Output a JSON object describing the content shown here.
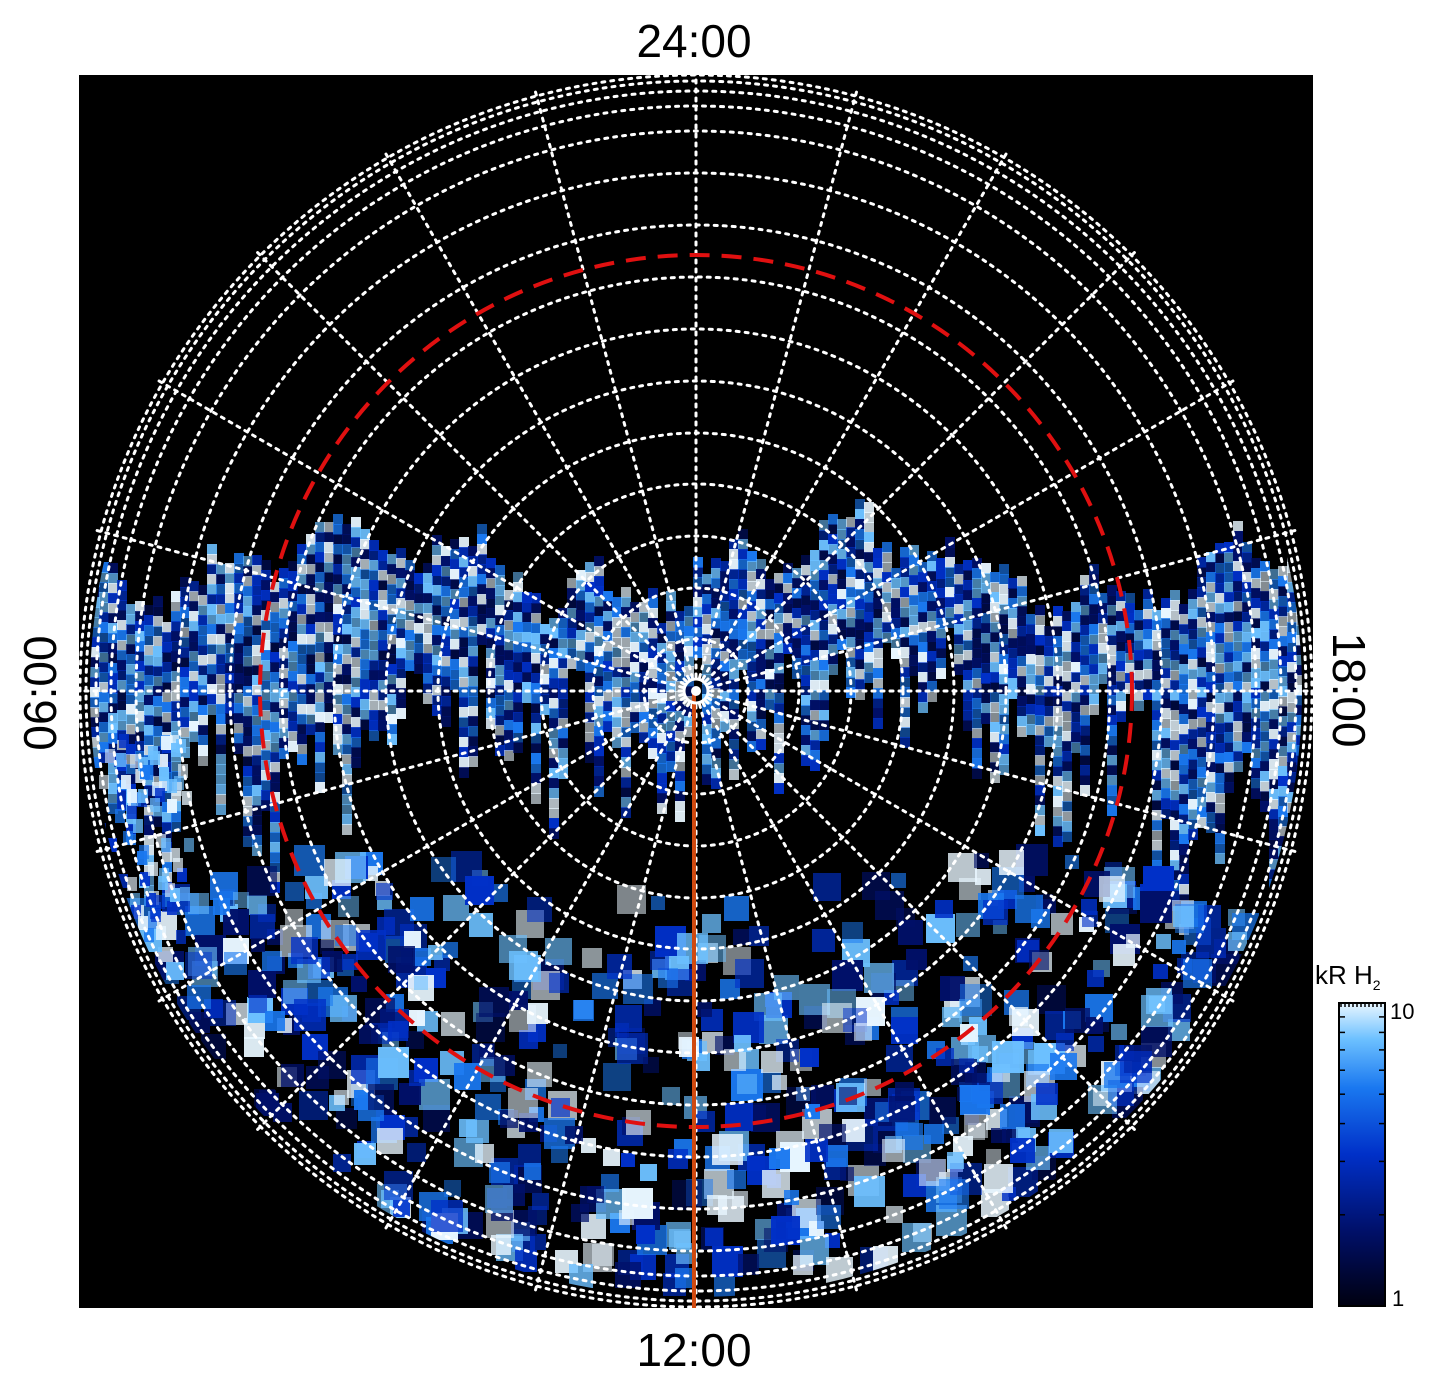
{
  "local_time_labels": {
    "top": "24:00",
    "bottom": "12:00",
    "left": "06:00",
    "right": "18:00"
  },
  "colorbar": {
    "title": "kR H",
    "title_subscript": "2",
    "max_label": "10",
    "min_label": "1",
    "colors": [
      "#000010",
      "#00106a",
      "#0030c8",
      "#1a78f0",
      "#6cc0ff",
      "#e8f6ff"
    ]
  },
  "colors": {
    "background": "#000000",
    "grid": "#ffffff",
    "reference_ring": "#e01010",
    "meridian": "#d04a10",
    "emission": "#1a78f0"
  }
}
